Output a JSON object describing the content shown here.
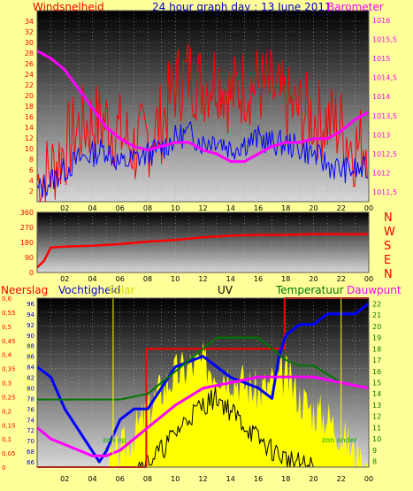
{
  "header": {
    "left_label": "Windsnelheid",
    "title": "24 hour graph day : 13 June 2011",
    "right_label": "Barometer"
  },
  "compass": [
    "N",
    "W",
    "S",
    "E",
    "N"
  ],
  "bottom_labels": {
    "neerslag": "Neerslag",
    "vochtigheid": "Vochtigheid",
    "solar": "Solar",
    "uv": "UV",
    "temperatuur": "Temperatuur",
    "dauwpunt": "Dauwpunt",
    "zon_op": "zon op",
    "zon_onder": "zon onder"
  },
  "colors": {
    "background": "#ffff99",
    "wind_speed": "#ff0000",
    "wind_avg": "#0000ff",
    "barometer": "#ff00ff",
    "wind_dir": "#ff0000",
    "humidity": "#0000ff",
    "temperature": "#007700",
    "dewpoint": "#ff00ff",
    "solar": "#ffff00",
    "uv": "#000000",
    "rain": "#ff0000"
  },
  "chart_data": [
    {
      "type": "line",
      "title": "24 hour graph day : 13 June 2011",
      "x_ticks": [
        "02",
        "04",
        "06",
        "08",
        "10",
        "12",
        "14",
        "16",
        "18",
        "20",
        "22",
        "00"
      ],
      "y_left": {
        "label": "Windsnelheid",
        "ticks": [
          "2",
          "4",
          "6",
          "8",
          "10",
          "12",
          "14",
          "16",
          "18",
          "20",
          "22",
          "24",
          "26",
          "28",
          "30",
          "32",
          "34"
        ],
        "range": [
          0,
          36
        ]
      },
      "y_right": {
        "label": "Barometer",
        "ticks": [
          "1011,5",
          "1012",
          "1012,5",
          "1013",
          "1013,5",
          "1014",
          "1014,5",
          "1015",
          "1015,5",
          "1016"
        ],
        "range": [
          1011.25,
          1016.25
        ]
      },
      "series": [
        {
          "name": "Windsnelheid",
          "x": [
            0,
            1,
            2,
            3,
            4,
            5,
            6,
            7,
            8,
            9,
            10,
            11,
            12,
            13,
            14,
            15,
            16,
            17,
            18,
            19,
            20,
            21,
            22,
            23,
            24
          ],
          "y": [
            4,
            6,
            10,
            14,
            15,
            15,
            13,
            10,
            12,
            15,
            22,
            24,
            22,
            24,
            20,
            22,
            22,
            21,
            18,
            17,
            16,
            15,
            14,
            10,
            12
          ]
        },
        {
          "x": [
            0,
            1,
            2,
            3,
            4,
            5,
            6,
            7,
            8,
            9,
            10,
            11,
            12,
            13,
            14,
            15,
            16,
            17,
            18,
            19,
            20,
            21,
            22,
            23,
            24
          ],
          "y": [
            2,
            4,
            6,
            8,
            9,
            10,
            7,
            8,
            9,
            10,
            12,
            13,
            11,
            12,
            10,
            11,
            12,
            11,
            11,
            10,
            9,
            7,
            6,
            6,
            6
          ]
        },
        {
          "name": "Barometer",
          "x": [
            0,
            1,
            2,
            3,
            4,
            5,
            6,
            7,
            8,
            9,
            10,
            11,
            12,
            13,
            14,
            15,
            16,
            17,
            18,
            19,
            20,
            21,
            22,
            23,
            24
          ],
          "y": [
            1015.2,
            1015.0,
            1014.7,
            1014.2,
            1013.7,
            1013.2,
            1012.9,
            1012.7,
            1012.6,
            1012.7,
            1012.8,
            1012.8,
            1012.6,
            1012.5,
            1012.3,
            1012.3,
            1012.5,
            1012.7,
            1012.8,
            1012.8,
            1012.9,
            1012.9,
            1013.1,
            1013.4,
            1013.6
          ]
        }
      ]
    },
    {
      "type": "line",
      "x_ticks": [
        "02",
        "04",
        "06",
        "08",
        "10",
        "12",
        "14",
        "16",
        "18",
        "20",
        "22",
        "00"
      ],
      "y_left": {
        "ticks": [
          "0",
          "90",
          "180",
          "270",
          "360"
        ],
        "range": [
          0,
          360
        ]
      },
      "series": [
        {
          "x": [
            0,
            0.5,
            1,
            2,
            4,
            6,
            8,
            10,
            12,
            14,
            16,
            18,
            20,
            22,
            23,
            24
          ],
          "y": [
            30,
            70,
            150,
            155,
            160,
            170,
            185,
            195,
            210,
            220,
            225,
            225,
            230,
            230,
            228,
            230
          ]
        }
      ]
    },
    {
      "type": "line",
      "x_ticks": [
        "02",
        "04",
        "06",
        "08",
        "10",
        "12",
        "14",
        "16",
        "18",
        "20",
        "22",
        "00"
      ],
      "y_axes": {
        "neerslag": {
          "label": "Neerslag",
          "ticks": [
            "0",
            "0,05",
            "0,1",
            "0,15",
            "0,2",
            "0,25",
            "0,3",
            "0,35",
            "0,4",
            "0,45",
            "0,5",
            "0,55",
            "0,6"
          ],
          "range": [
            0,
            0.6
          ]
        },
        "vochtigheid": {
          "label": "Vochtigheid",
          "ticks": [
            "66",
            "68",
            "70",
            "72",
            "74",
            "76",
            "78",
            "80",
            "82",
            "84",
            "86",
            "88",
            "90",
            "92",
            "94",
            "96"
          ],
          "range": [
            65,
            97
          ]
        },
        "temperatuur": {
          "label": "Temperatuur",
          "ticks": [
            "8",
            "9",
            "10",
            "11",
            "12",
            "13",
            "14",
            "15",
            "16",
            "17",
            "18",
            "19",
            "20",
            "21",
            "22"
          ],
          "range": [
            7.5,
            22.5
          ]
        }
      },
      "series": [
        {
          "name": "Neerslag",
          "x": [
            0,
            7.9,
            7.9,
            17.9,
            17.9,
            24
          ],
          "y": [
            0,
            0,
            0.42,
            0.42,
            0.6,
            0.6
          ]
        },
        {
          "name": "Vochtigheid",
          "x": [
            0,
            1,
            2,
            3,
            4,
            4.5,
            5,
            6,
            7,
            8,
            9,
            10,
            12,
            14,
            16,
            17,
            17.5,
            18,
            19,
            20,
            21,
            22,
            23,
            24
          ],
          "y": [
            84,
            82,
            76,
            72,
            68,
            66,
            68,
            74,
            76,
            76,
            80,
            84,
            86,
            82,
            80,
            78,
            86,
            90,
            92,
            92,
            94,
            94,
            94,
            96
          ]
        },
        {
          "name": "Temperatuur",
          "x": [
            0,
            2,
            4,
            6,
            8,
            10,
            12,
            13,
            14,
            16,
            17,
            18,
            19,
            20,
            22,
            24
          ],
          "y": [
            13.5,
            13.5,
            13.5,
            13.5,
            14,
            16,
            18,
            19,
            19,
            19,
            18,
            17,
            16.5,
            16.5,
            15,
            14.5
          ]
        },
        {
          "name": "Dauwpunt",
          "x": [
            0,
            1,
            2,
            3,
            4,
            5,
            6,
            7,
            8,
            10,
            12,
            14,
            16,
            18,
            20,
            22,
            24
          ],
          "y": [
            11,
            10,
            9.5,
            9,
            8.5,
            8.5,
            9,
            10,
            11,
            13,
            14.5,
            15,
            15.5,
            15.5,
            15.5,
            15,
            14.5
          ]
        },
        {
          "name": "Solar",
          "x": [
            0,
            5,
            6,
            7,
            8,
            9,
            10,
            11,
            12,
            13,
            14,
            15,
            16,
            17,
            18,
            19,
            20,
            21,
            22,
            23,
            24
          ],
          "y": [
            0,
            0,
            0.05,
            0.12,
            0.2,
            0.28,
            0.33,
            0.36,
            0.37,
            0.35,
            0.33,
            0.3,
            0.27,
            0.3,
            0.33,
            0.25,
            0.2,
            0.18,
            0.12,
            0.05,
            0
          ]
        },
        {
          "name": "UV",
          "x": [
            0,
            7,
            8,
            9,
            10,
            11,
            12,
            13,
            14,
            15,
            16,
            17,
            18,
            19,
            20,
            24
          ],
          "y": [
            0,
            0,
            0.02,
            0.06,
            0.12,
            0.18,
            0.22,
            0.25,
            0.2,
            0.15,
            0.1,
            0.06,
            0.03,
            0.01,
            0,
            0
          ]
        }
      ],
      "annotations": [
        "zon op",
        "zon onder"
      ]
    }
  ]
}
